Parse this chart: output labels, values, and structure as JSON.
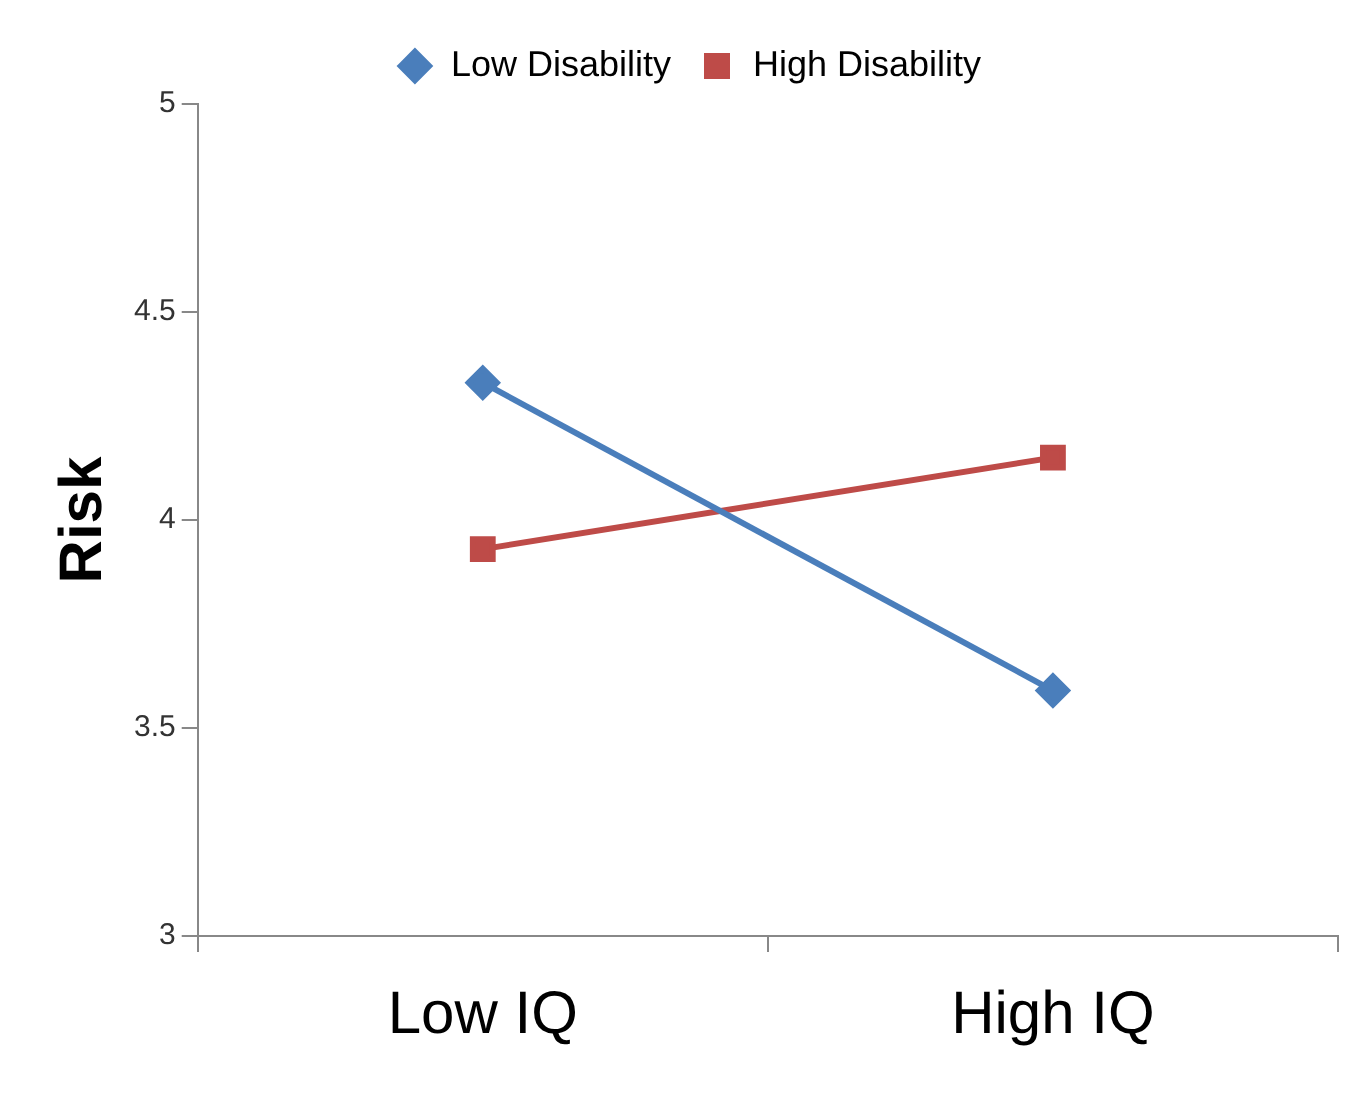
{
  "chart_data": {
    "type": "line",
    "ylabel": "Risk",
    "categories": [
      "Low IQ",
      "High IQ"
    ],
    "series": [
      {
        "name": "Low Disability",
        "color": "#4a7ebb",
        "values": [
          4.33,
          3.59
        ],
        "marker": "diamond"
      },
      {
        "name": "High Disability",
        "color": "#be4b48",
        "values": [
          3.93,
          4.15
        ],
        "marker": "square"
      }
    ],
    "ylim": [
      3,
      5
    ],
    "yticks": [
      3,
      3.5,
      4,
      4.5,
      5
    ],
    "grid": false,
    "legend": "top",
    "line_style": "solid"
  }
}
